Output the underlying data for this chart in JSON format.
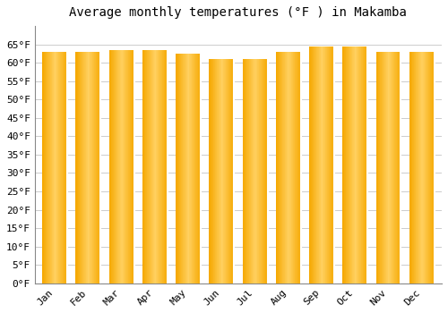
{
  "title": "Average monthly temperatures (°F ) in Makamba",
  "months": [
    "Jan",
    "Feb",
    "Mar",
    "Apr",
    "May",
    "Jun",
    "Jul",
    "Aug",
    "Sep",
    "Oct",
    "Nov",
    "Dec"
  ],
  "values": [
    63.0,
    63.0,
    63.5,
    63.5,
    62.5,
    61.0,
    61.0,
    63.0,
    64.5,
    64.5,
    63.0,
    63.0
  ],
  "bar_color": "#F5A800",
  "bar_color_light": "#FFD060",
  "bar_color_dark": "#E89000",
  "background_color": "#FFFFFF",
  "grid_color": "#CCCCCC",
  "ylim": [
    0,
    70
  ],
  "yticks": [
    0,
    5,
    10,
    15,
    20,
    25,
    30,
    35,
    40,
    45,
    50,
    55,
    60,
    65
  ],
  "ytick_labels": [
    "0°F",
    "5°F",
    "10°F",
    "15°F",
    "20°F",
    "25°F",
    "30°F",
    "35°F",
    "40°F",
    "45°F",
    "50°F",
    "55°F",
    "60°F",
    "65°F"
  ],
  "title_fontsize": 10,
  "tick_fontsize": 8,
  "font_family": "monospace"
}
